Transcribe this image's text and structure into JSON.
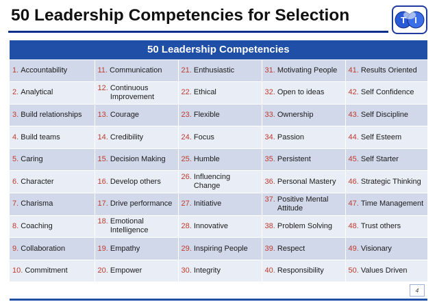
{
  "slide": {
    "title": "50 Leadership Competencies for Selection",
    "page_number": "4"
  },
  "table": {
    "header": "50 Leadership Competencies",
    "rows": [
      [
        {
          "n": "1.",
          "t": "Accountability"
        },
        {
          "n": "11.",
          "t": "Communication"
        },
        {
          "n": "21.",
          "t": "Enthusiastic"
        },
        {
          "n": "31.",
          "t": "Motivating People"
        },
        {
          "n": "41.",
          "t": "Results Oriented"
        }
      ],
      [
        {
          "n": "2.",
          "t": "Analytical"
        },
        {
          "n": "12.",
          "t": "Continuous Improvement"
        },
        {
          "n": "22.",
          "t": "Ethical"
        },
        {
          "n": "32.",
          "t": "Open to ideas"
        },
        {
          "n": "42.",
          "t": "Self Confidence"
        }
      ],
      [
        {
          "n": "3.",
          "t": "Build relationships"
        },
        {
          "n": "13.",
          "t": "Courage"
        },
        {
          "n": "23.",
          "t": "Flexible"
        },
        {
          "n": "33.",
          "t": "Ownership"
        },
        {
          "n": "43.",
          "t": "Self Discipline"
        }
      ],
      [
        {
          "n": "4.",
          "t": "Build teams"
        },
        {
          "n": "14.",
          "t": "Credibility"
        },
        {
          "n": "24.",
          "t": "Focus"
        },
        {
          "n": "34.",
          "t": "Passion"
        },
        {
          "n": "44.",
          "t": "Self Esteem"
        }
      ],
      [
        {
          "n": "5.",
          "t": "Caring"
        },
        {
          "n": "15.",
          "t": "Decision Making"
        },
        {
          "n": "25.",
          "t": "Humble"
        },
        {
          "n": "35.",
          "t": "Persistent"
        },
        {
          "n": "45.",
          "t": "Self Starter"
        }
      ],
      [
        {
          "n": "6.",
          "t": "Character"
        },
        {
          "n": "16.",
          "t": "Develop others"
        },
        {
          "n": "26.",
          "t": "Influencing Change"
        },
        {
          "n": "36.",
          "t": "Personal Mastery"
        },
        {
          "n": "46.",
          "t": "Strategic Thinking"
        }
      ],
      [
        {
          "n": "7.",
          "t": "Charisma"
        },
        {
          "n": "17.",
          "t": "Drive performance"
        },
        {
          "n": "27.",
          "t": "Initiative"
        },
        {
          "n": "37.",
          "t": "Positive Mental Attitude"
        },
        {
          "n": "47.",
          "t": "Time Management"
        }
      ],
      [
        {
          "n": "8.",
          "t": "Coaching"
        },
        {
          "n": "18.",
          "t": "Emotional Intelligence"
        },
        {
          "n": "28.",
          "t": "Innovative"
        },
        {
          "n": "38.",
          "t": "Problem Solving"
        },
        {
          "n": "48.",
          "t": "Trust others"
        }
      ],
      [
        {
          "n": "9.",
          "t": "Collaboration"
        },
        {
          "n": "19.",
          "t": "Empathy"
        },
        {
          "n": "29.",
          "t": "Inspiring People"
        },
        {
          "n": "39.",
          "t": "Respect"
        },
        {
          "n": "49.",
          "t": "Visionary"
        }
      ],
      [
        {
          "n": "10.",
          "t": "Commitment"
        },
        {
          "n": "20.",
          "t": "Empower"
        },
        {
          "n": "30.",
          "t": "Integrity"
        },
        {
          "n": "40.",
          "t": "Responsibility"
        },
        {
          "n": "50.",
          "t": "Values Driven"
        }
      ]
    ]
  },
  "colors": {
    "header_bg": "#1f4fa6",
    "number_red": "#c0392b",
    "row_dark": "#d0d8ea",
    "row_light": "#e9edf5"
  },
  "icons": {
    "logo": "tmi-logo"
  }
}
